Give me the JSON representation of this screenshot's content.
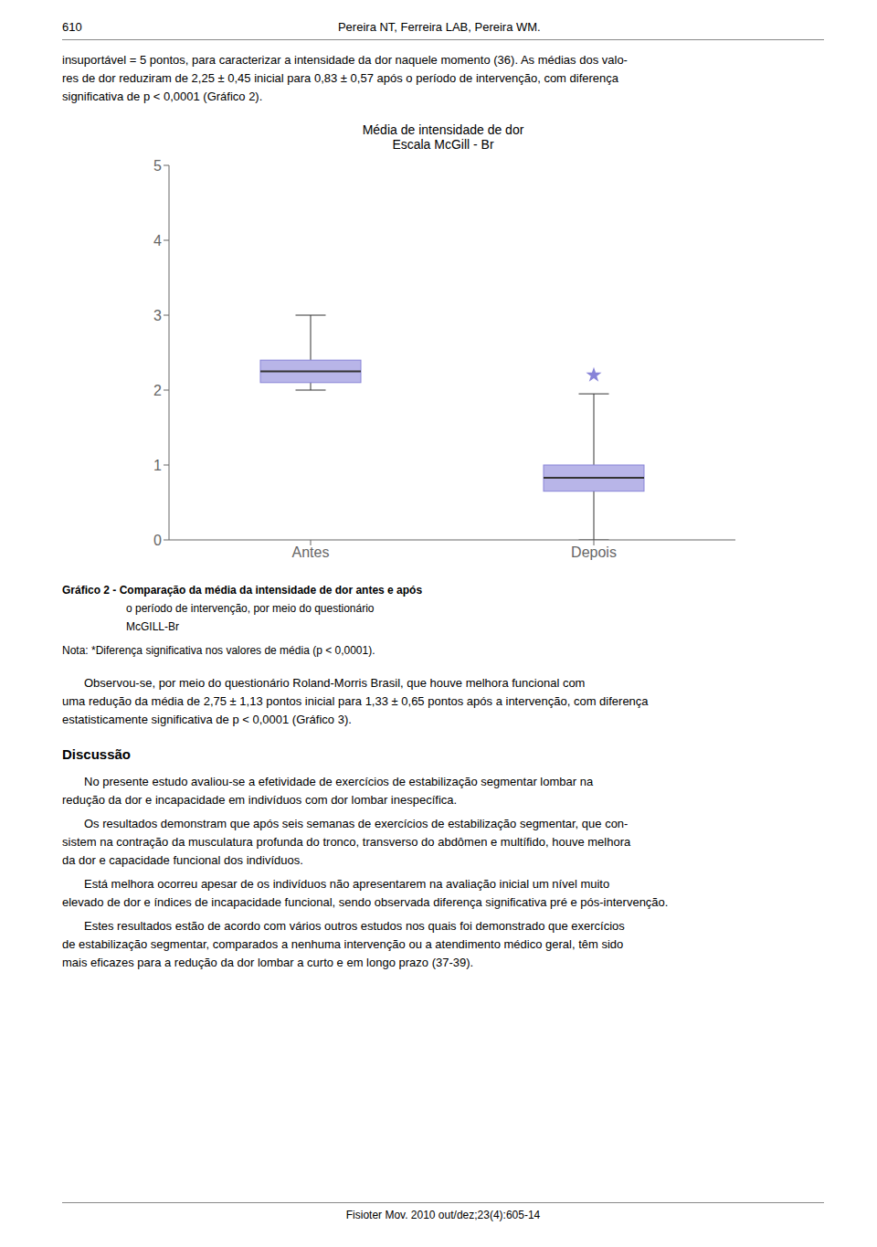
{
  "chart_data": {
    "type": "box",
    "title": "Média de intensidade de dor",
    "subtitle": "Escala McGill - Br",
    "categories": [
      "Antes",
      "Depois"
    ],
    "median": [
      2.25,
      0.83
    ],
    "q1": [
      2.1,
      0.65
    ],
    "q3": [
      2.4,
      1.0
    ],
    "whisker_low": [
      2.0,
      0.0
    ],
    "whisker_high": [
      3.0,
      1.95
    ],
    "outliers": [
      null,
      2.2
    ],
    "marker": "star",
    "color": "#8884d8",
    "ylim": [
      0,
      5
    ],
    "yticks": [
      0,
      1,
      2,
      3,
      4,
      5
    ],
    "grid": false,
    "annotations": [
      "610",
      "Pereira NT, Ferreira LAB, Pereira WM.",
      "insuportável = 5 pontos, para caracterizar a intensidade da dor naquele momento (36). As médias dos valo-",
      "res de dor reduziram de 2,25 ± 0,45 inicial para 0,83 ± 0,57 após o período de intervenção, com diferença",
      "significativa de p < 0,0001 (Gráfico 2).",
      "Gráfico 2 - Comparação da média da intensidade de dor antes e após",
      "o período de intervenção, por meio do questionário",
      "McGILL-Br",
      "Nota: *Diferença significativa nos valores de média (p < 0,0001).",
      "Observou-se, por meio do questionário Roland-Morris Brasil, que houve melhora funcional com",
      "uma redução da média de 2,75 ± 1,13 pontos inicial para 1,33 ± 0,65 pontos após a intervenção, com diferença",
      "estatisticamente significativa de p < 0,0001 (Gráfico 3).",
      "Discussão",
      "No presente estudo avaliou-se a efetividade de exercícios de estabilização segmentar lombar na",
      "redução da dor e incapacidade em indivíduos com dor lombar inespecífica.",
      "Os resultados demonstram que após seis semanas de exercícios de estabilização segmentar, que con-",
      "sistem na contração da musculatura profunda do tronco, transverso do abdômen e multífido, houve melhora",
      "da dor e capacidade funcional dos indivíduos.",
      "Está melhora ocorreu apesar de os indivíduos não apresentarem na avaliação inicial um nível muito",
      "elevado de dor e índices de incapacidade funcional, sendo observada diferença significativa pré e pós-intervenção.",
      "Estes resultados estão de acordo com vários outros estudos nos quais foi demonstrado que exercícios",
      "de estabilização segmentar, comparados a nenhuma intervenção ou a atendimento médico geral, têm sido",
      "mais eficazes para a redução da dor lombar a curto e em longo prazo (37-39).",
      "Fisioter Mov. 2010 out/dez;23(4):605-14"
    ]
  }
}
